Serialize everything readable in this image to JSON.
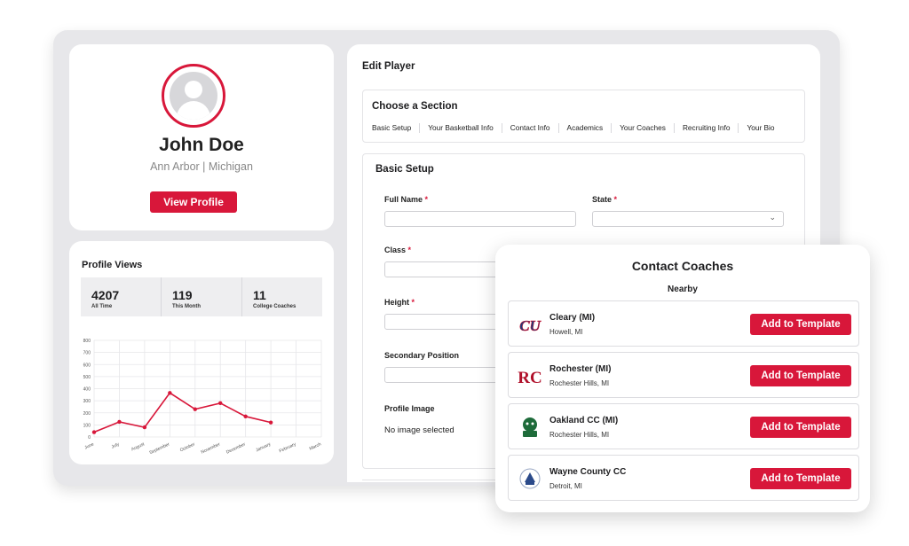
{
  "profile": {
    "name": "John Doe",
    "location": "Ann Arbor |  Michigan",
    "view_profile_label": "View Profile"
  },
  "profile_views": {
    "title": "Profile Views",
    "stats": [
      {
        "value": "4207",
        "label": "All Time"
      },
      {
        "value": "119",
        "label": "This Month"
      },
      {
        "value": "11",
        "label": "College Coaches"
      }
    ]
  },
  "chart_data": {
    "type": "line",
    "categories": [
      "June",
      "July",
      "August",
      "September",
      "October",
      "November",
      "December",
      "January",
      "February",
      "March"
    ],
    "values": [
      40,
      125,
      80,
      365,
      230,
      280,
      170,
      120,
      null,
      null
    ],
    "yticks": [
      0,
      100,
      200,
      300,
      400,
      500,
      600,
      700,
      800
    ],
    "ylim": [
      0,
      800
    ],
    "grid": true,
    "color": "#d8173a"
  },
  "edit": {
    "title": "Edit Player",
    "section_title": "Choose a Section",
    "tabs": [
      "Basic Setup",
      "Your Basketball Info",
      "Contact Info",
      "Academics",
      "Your Coaches",
      "Recruiting Info",
      "Your Bio"
    ],
    "basic_title": "Basic Setup",
    "fields": {
      "full_name": "Full Name",
      "state": "State",
      "class": "Class",
      "height": "Height",
      "secondary_position": "Secondary Position",
      "profile_image": "Profile Image",
      "required_mark": "*"
    },
    "no_image": "No image selected"
  },
  "coaches": {
    "title": "Contact Coaches",
    "subtitle": "Nearby",
    "add_label": "Add to Template",
    "items": [
      {
        "name": "Cleary (MI)",
        "city": "Howell, MI",
        "logo": "cleary-logo"
      },
      {
        "name": "Rochester (MI)",
        "city": "Rochester Hills, MI",
        "logo": "rochester-logo"
      },
      {
        "name": "Oakland CC (MI)",
        "city": "Rochester Hills, MI",
        "logo": "oakland-cc-logo"
      },
      {
        "name": "Wayne County CC",
        "city": "Detroit, MI",
        "logo": "wayne-county-cc-logo"
      }
    ]
  },
  "colors": {
    "accent": "#d8173a",
    "panel_bg": "#e7e7ea"
  }
}
